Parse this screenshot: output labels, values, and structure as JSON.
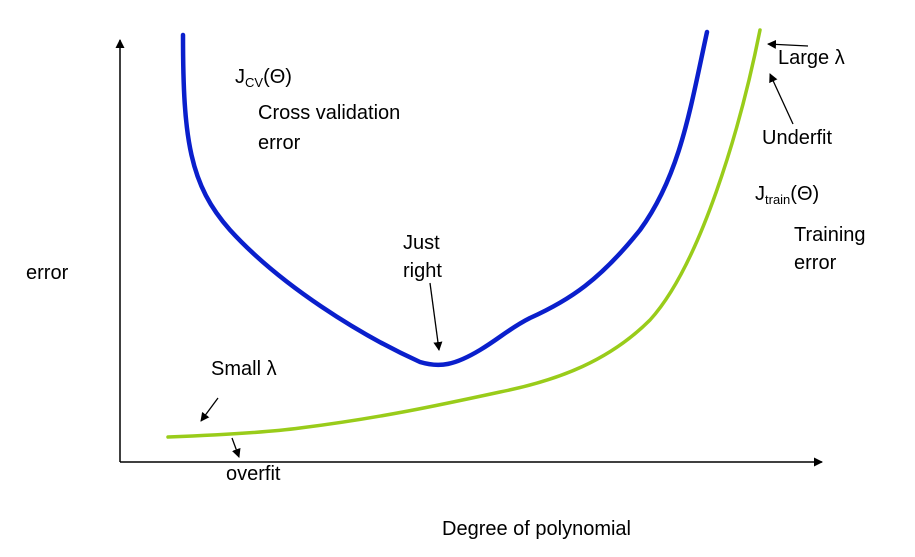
{
  "axes": {
    "y_label": "error",
    "x_label": "Degree of polynomial"
  },
  "cv_curve": {
    "symbol": "J",
    "subscript": "CV",
    "arg": "(Θ)",
    "desc_line1": "Cross validation",
    "desc_line2": "error",
    "color": "#0a1fcc"
  },
  "train_curve": {
    "symbol": "J",
    "subscript": "train",
    "arg": "(Θ)",
    "desc_line1": "Training",
    "desc_line2": "error",
    "color": "#99cc1a"
  },
  "annotations": {
    "just_right_line1": "Just",
    "just_right_line2": "right",
    "large_lambda": "Large λ",
    "underfit": "Underfit",
    "small_lambda": "Small λ",
    "overfit": "overfit"
  }
}
